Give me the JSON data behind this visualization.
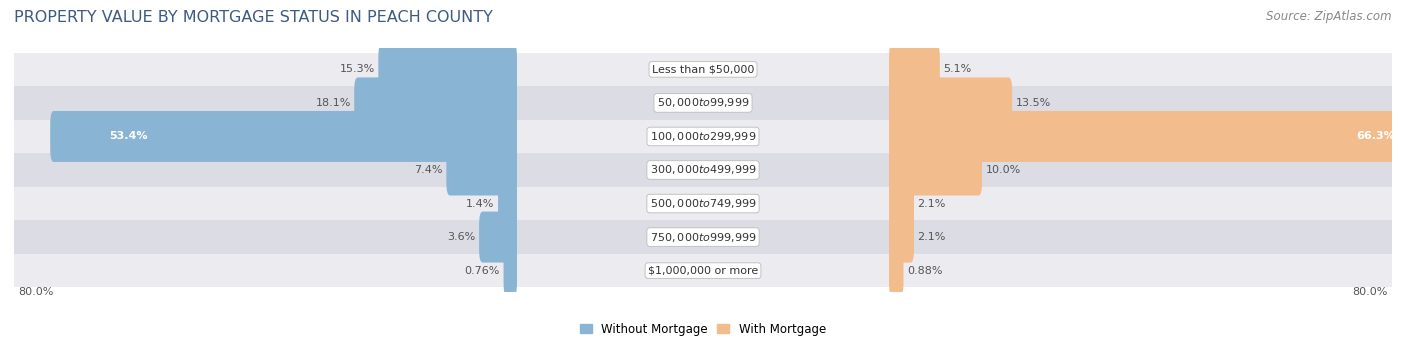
{
  "title": "PROPERTY VALUE BY MORTGAGE STATUS IN PEACH COUNTY",
  "source": "Source: ZipAtlas.com",
  "categories": [
    "Less than $50,000",
    "$50,000 to $99,999",
    "$100,000 to $299,999",
    "$300,000 to $499,999",
    "$500,000 to $749,999",
    "$750,000 to $999,999",
    "$1,000,000 or more"
  ],
  "without_mortgage": [
    15.3,
    18.1,
    53.4,
    7.4,
    1.4,
    3.6,
    0.76
  ],
  "with_mortgage": [
    5.1,
    13.5,
    66.3,
    10.0,
    2.1,
    2.1,
    0.88
  ],
  "without_mortgage_color": "#8ab4d4",
  "with_mortgage_color": "#f2bc8c",
  "row_bg_colors": [
    "#ebebf0",
    "#dcdce4"
  ],
  "axis_label_left": "80.0%",
  "axis_label_right": "80.0%",
  "max_val": 80.0,
  "label_zone": 22.0,
  "title_color": "#3d5a82",
  "title_fontsize": 11.5,
  "source_fontsize": 8.5,
  "bar_height": 0.72,
  "value_fontsize": 8,
  "cat_fontsize": 8,
  "legend_fontsize": 8.5
}
